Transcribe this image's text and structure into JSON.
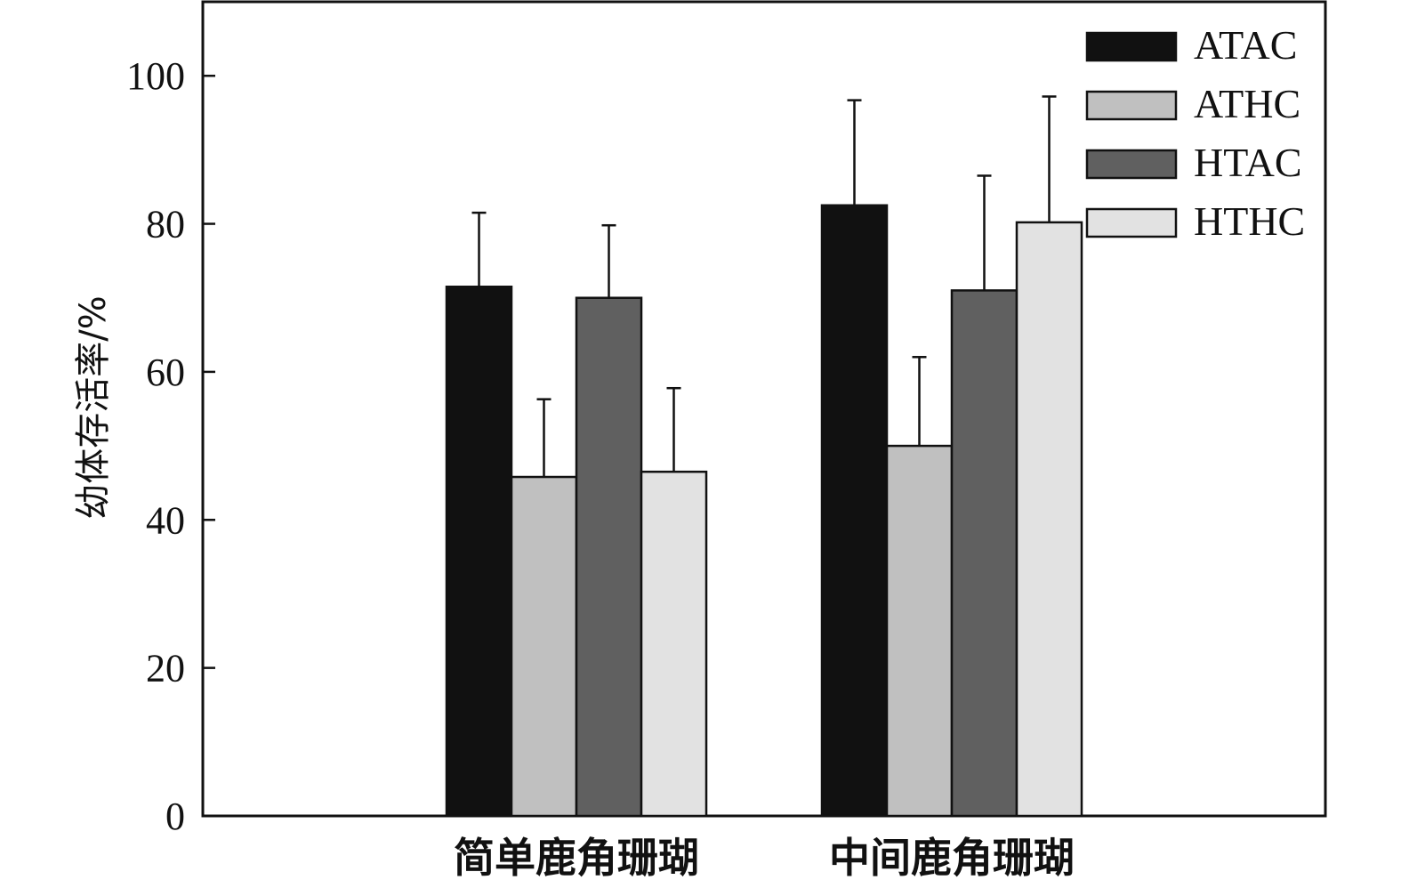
{
  "chart_data": {
    "type": "bar",
    "title": "",
    "xlabel": "",
    "ylabel": "幼体存活率/%",
    "ylim": [
      0,
      110
    ],
    "yticks": [
      0,
      20,
      40,
      60,
      80,
      100
    ],
    "categories": [
      "简单鹿角珊瑚",
      "中间鹿角珊瑚"
    ],
    "series": [
      {
        "name": "ATAC",
        "color": "#111111",
        "values": [
          71.5,
          82.5
        ],
        "errors": [
          10,
          14.2
        ]
      },
      {
        "name": "ATHC",
        "color": "#c0c0c0",
        "values": [
          45.8,
          50.0
        ],
        "errors": [
          10.5,
          12
        ]
      },
      {
        "name": "HTAC",
        "color": "#606060",
        "values": [
          70.0,
          71.0
        ],
        "errors": [
          9.8,
          15.5
        ]
      },
      {
        "name": "HTHC",
        "color": "#e2e2e2",
        "values": [
          46.5,
          80.2
        ],
        "errors": [
          11.3,
          17
        ]
      }
    ],
    "legend_position": "top-right",
    "grid": false
  }
}
